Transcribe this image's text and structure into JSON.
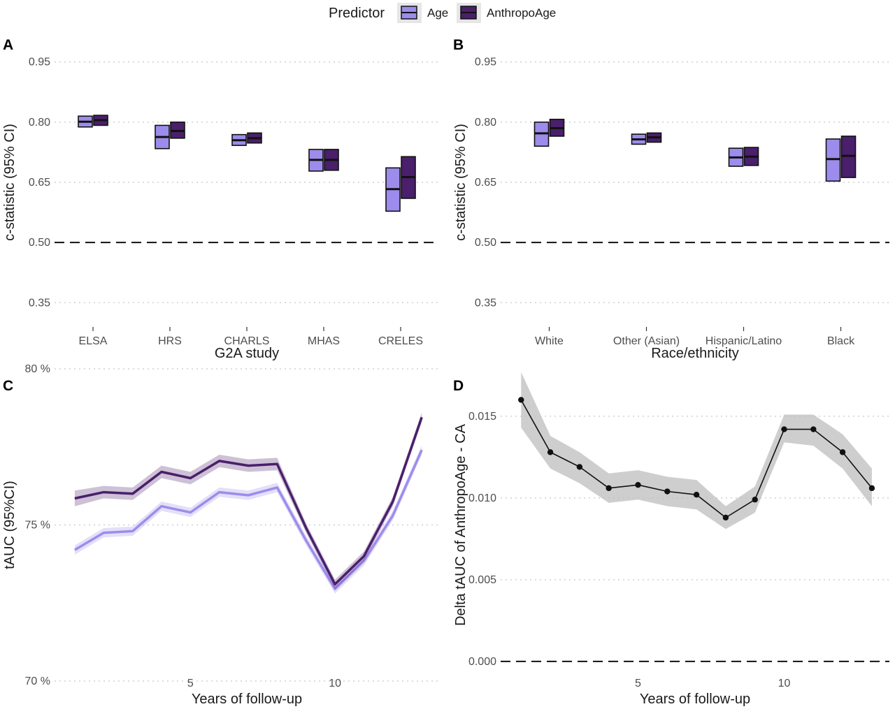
{
  "legend": {
    "title": "Predictor",
    "items": [
      {
        "label": "Age",
        "color": "#9d8ceb"
      },
      {
        "label": "AnthropoAge",
        "color": "#4a1f6b"
      }
    ]
  },
  "panels": {
    "A": "A",
    "B": "B",
    "C": "C",
    "D": "D"
  },
  "chart_data": [
    {
      "panel": "A",
      "type": "crossbar",
      "xlabel": "G2A study",
      "ylabel": "c-statistic (95% CI)",
      "ylim": [
        0.3,
        1.0
      ],
      "yticks": [
        "0.35",
        "0.50",
        "0.65",
        "0.80",
        "0.95"
      ],
      "yticks_values": [
        0.35,
        0.5,
        0.65,
        0.8,
        0.95
      ],
      "reference_line": 0.5,
      "categories": [
        "ELSA",
        "HRS",
        "CHARLS",
        "MHAS",
        "CRELES"
      ],
      "series": [
        {
          "name": "Age",
          "color": "#9d8ceb",
          "estimate": [
            0.801,
            0.763,
            0.755,
            0.706,
            0.633
          ],
          "lower": [
            0.788,
            0.734,
            0.742,
            0.678,
            0.578
          ],
          "upper": [
            0.815,
            0.792,
            0.769,
            0.732,
            0.686
          ]
        },
        {
          "name": "AnthropoAge",
          "color": "#4a1f6b",
          "estimate": [
            0.805,
            0.778,
            0.76,
            0.706,
            0.663
          ],
          "lower": [
            0.792,
            0.76,
            0.748,
            0.68,
            0.61
          ],
          "upper": [
            0.817,
            0.8,
            0.773,
            0.732,
            0.714
          ]
        }
      ]
    },
    {
      "panel": "B",
      "type": "crossbar",
      "xlabel": "Race/ethnicity",
      "ylabel": "c-statistic (95% CI)",
      "ylim": [
        0.3,
        1.0
      ],
      "yticks": [
        "0.35",
        "0.50",
        "0.65",
        "0.80",
        "0.95"
      ],
      "yticks_values": [
        0.35,
        0.5,
        0.65,
        0.8,
        0.95
      ],
      "reference_line": 0.5,
      "categories": [
        "White",
        "Other (Asian)",
        "Hispanic/Latino",
        "Black"
      ],
      "series": [
        {
          "name": "Age",
          "color": "#9d8ceb",
          "estimate": [
            0.772,
            0.757,
            0.712,
            0.708
          ],
          "lower": [
            0.74,
            0.745,
            0.69,
            0.653
          ],
          "upper": [
            0.8,
            0.77,
            0.735,
            0.758
          ]
        },
        {
          "name": "AnthropoAge",
          "color": "#4a1f6b",
          "estimate": [
            0.785,
            0.762,
            0.714,
            0.716
          ],
          "lower": [
            0.765,
            0.75,
            0.692,
            0.662
          ],
          "upper": [
            0.807,
            0.773,
            0.737,
            0.765
          ]
        }
      ]
    },
    {
      "panel": "C",
      "type": "line",
      "xlabel": "Years of follow-up",
      "ylabel": "tAUC (95%CI)",
      "xlim": [
        0.3,
        13.6
      ],
      "xticks": [
        5,
        10
      ],
      "ylim": [
        70,
        80
      ],
      "yticks": [
        "70 %",
        "75 %",
        "80 %"
      ],
      "yticks_values": [
        70,
        75,
        80
      ],
      "x": [
        1,
        2,
        3,
        4,
        5,
        6,
        7,
        8,
        9,
        10,
        11,
        12,
        13
      ],
      "series": [
        {
          "name": "Age",
          "color": "#9d8ceb",
          "values": [
            74.2,
            74.75,
            74.8,
            75.6,
            75.4,
            76.05,
            75.95,
            76.2,
            74.5,
            72.95,
            73.85,
            75.3,
            77.4
          ],
          "lower": [
            74.05,
            74.6,
            74.65,
            75.45,
            75.25,
            75.9,
            75.8,
            76.05,
            74.35,
            72.8,
            73.7,
            75.15,
            77.25
          ],
          "upper": [
            74.35,
            74.9,
            74.95,
            75.75,
            75.55,
            76.2,
            76.1,
            76.35,
            74.65,
            73.1,
            74.0,
            75.45,
            77.55
          ]
        },
        {
          "name": "AnthropoAge",
          "color": "#4a1f6b",
          "values": [
            75.85,
            76.05,
            76.0,
            76.7,
            76.5,
            77.05,
            76.9,
            76.95,
            74.9,
            73.1,
            74.0,
            75.75,
            78.45
          ],
          "lower": [
            75.6,
            75.85,
            75.8,
            76.5,
            76.3,
            76.85,
            76.7,
            76.75,
            74.75,
            72.95,
            73.85,
            75.6,
            78.3
          ],
          "upper": [
            76.1,
            76.25,
            76.2,
            76.9,
            76.7,
            77.25,
            77.1,
            77.15,
            75.05,
            73.25,
            74.15,
            75.9,
            78.6
          ]
        }
      ]
    },
    {
      "panel": "D",
      "type": "line",
      "xlabel": "Years of follow-up",
      "ylabel": "Delta tAUC of AnthropoAge - CA",
      "xlim": [
        0.3,
        13.6
      ],
      "xticks": [
        5,
        10
      ],
      "ylim": [
        -0.0012,
        0.0179
      ],
      "yticks": [
        "0.000",
        "0.005",
        "0.010",
        "0.015"
      ],
      "yticks_values": [
        0.0,
        0.005,
        0.01,
        0.015
      ],
      "reference_line": 0,
      "x": [
        1,
        2,
        3,
        4,
        5,
        6,
        7,
        8,
        9,
        10,
        11,
        12,
        13
      ],
      "series": [
        {
          "name": "",
          "color": "#111111",
          "values": [
            0.016,
            0.0128,
            0.0119,
            0.0106,
            0.0108,
            0.0104,
            0.0102,
            0.0088,
            0.0099,
            0.0142,
            0.0142,
            0.0128,
            0.0106
          ],
          "lower": [
            0.0143,
            0.0118,
            0.0109,
            0.0097,
            0.0099,
            0.0095,
            0.0093,
            0.0081,
            0.0091,
            0.0134,
            0.0132,
            0.0118,
            0.0095
          ],
          "upper": [
            0.0177,
            0.0138,
            0.0128,
            0.0115,
            0.0117,
            0.0113,
            0.0111,
            0.0095,
            0.0107,
            0.0151,
            0.0151,
            0.0139,
            0.0118
          ]
        }
      ]
    }
  ]
}
